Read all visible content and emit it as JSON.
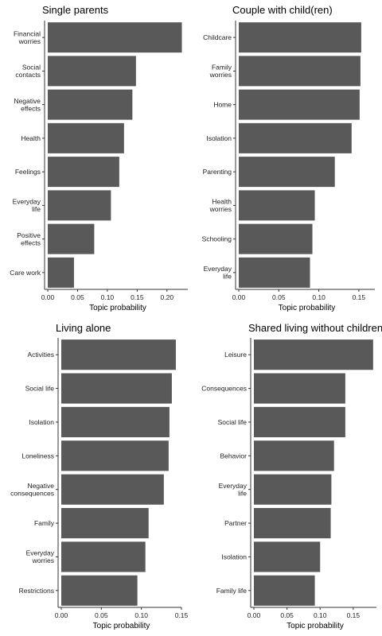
{
  "chart_data": [
    {
      "type": "bar",
      "orientation": "horizontal",
      "title": "Single parents",
      "xlabel": "Topic probability",
      "ylabel": "",
      "xlim": [
        0,
        0.235
      ],
      "xticks": [
        "0.00",
        "0.05",
        "0.10",
        "0.15",
        "0.20"
      ],
      "xtick_values": [
        0,
        0.05,
        0.1,
        0.15,
        0.2
      ],
      "grid": false,
      "categories": [
        [
          "Financial",
          "worries"
        ],
        [
          "Social",
          "contacts"
        ],
        [
          "Negative",
          "effects"
        ],
        [
          "Health"
        ],
        [
          "Feelings"
        ],
        [
          "Everyday",
          "life"
        ],
        [
          "Positive",
          "effects"
        ],
        [
          "Care work"
        ]
      ],
      "values": [
        0.225,
        0.148,
        0.142,
        0.128,
        0.12,
        0.106,
        0.078,
        0.044
      ],
      "bar_color": "#595959"
    },
    {
      "type": "bar",
      "orientation": "horizontal",
      "title": "Couple with child(ren)",
      "xlabel": "Topic probability",
      "ylabel": "",
      "xlim": [
        0,
        0.17
      ],
      "xticks": [
        "0.00",
        "0.05",
        "0.10",
        "0.15"
      ],
      "xtick_values": [
        0,
        0.05,
        0.1,
        0.15
      ],
      "grid": false,
      "categories": [
        [
          "Childcare"
        ],
        [
          "Family",
          "worries"
        ],
        [
          "Home"
        ],
        [
          "Isolation"
        ],
        [
          "Parenting"
        ],
        [
          "Health",
          "worries"
        ],
        [
          "Schooling"
        ],
        [
          "Everyday",
          "life"
        ]
      ],
      "values": [
        0.153,
        0.152,
        0.151,
        0.141,
        0.12,
        0.095,
        0.092,
        0.089
      ],
      "bar_color": "#595959"
    },
    {
      "type": "bar",
      "orientation": "horizontal",
      "title": "Living alone",
      "xlabel": "Topic probability",
      "ylabel": "",
      "xlim": [
        0,
        0.15
      ],
      "xticks": [
        "0.00",
        "0.05",
        "0.10",
        "0.15"
      ],
      "xtick_values": [
        0,
        0.05,
        0.1,
        0.15
      ],
      "grid": false,
      "categories": [
        [
          "Activities"
        ],
        [
          "Social life"
        ],
        [
          "Isolation"
        ],
        [
          "Loneliness"
        ],
        [
          "Negative",
          "consequences"
        ],
        [
          "Family"
        ],
        [
          "Everyday",
          "worries"
        ],
        [
          "Restrictions"
        ]
      ],
      "values": [
        0.143,
        0.138,
        0.135,
        0.134,
        0.128,
        0.109,
        0.105,
        0.095
      ],
      "bar_color": "#595959"
    },
    {
      "type": "bar",
      "orientation": "horizontal",
      "title": "Shared living without children",
      "xlabel": "Topic probability",
      "ylabel": "",
      "xlim": [
        0,
        0.185
      ],
      "xticks": [
        "0.00",
        "0.05",
        "0.10",
        "0.15"
      ],
      "xtick_values": [
        0,
        0.05,
        0.1,
        0.15
      ],
      "grid": false,
      "categories": [
        [
          "Leisure"
        ],
        [
          "Consequences"
        ],
        [
          "Social life"
        ],
        [
          "Behavior"
        ],
        [
          "Everyday",
          "life"
        ],
        [
          "Partner"
        ],
        [
          "Isolation"
        ],
        [
          "Family life"
        ]
      ],
      "values": [
        0.18,
        0.138,
        0.138,
        0.121,
        0.117,
        0.116,
        0.1,
        0.092
      ],
      "bar_color": "#595959"
    }
  ]
}
